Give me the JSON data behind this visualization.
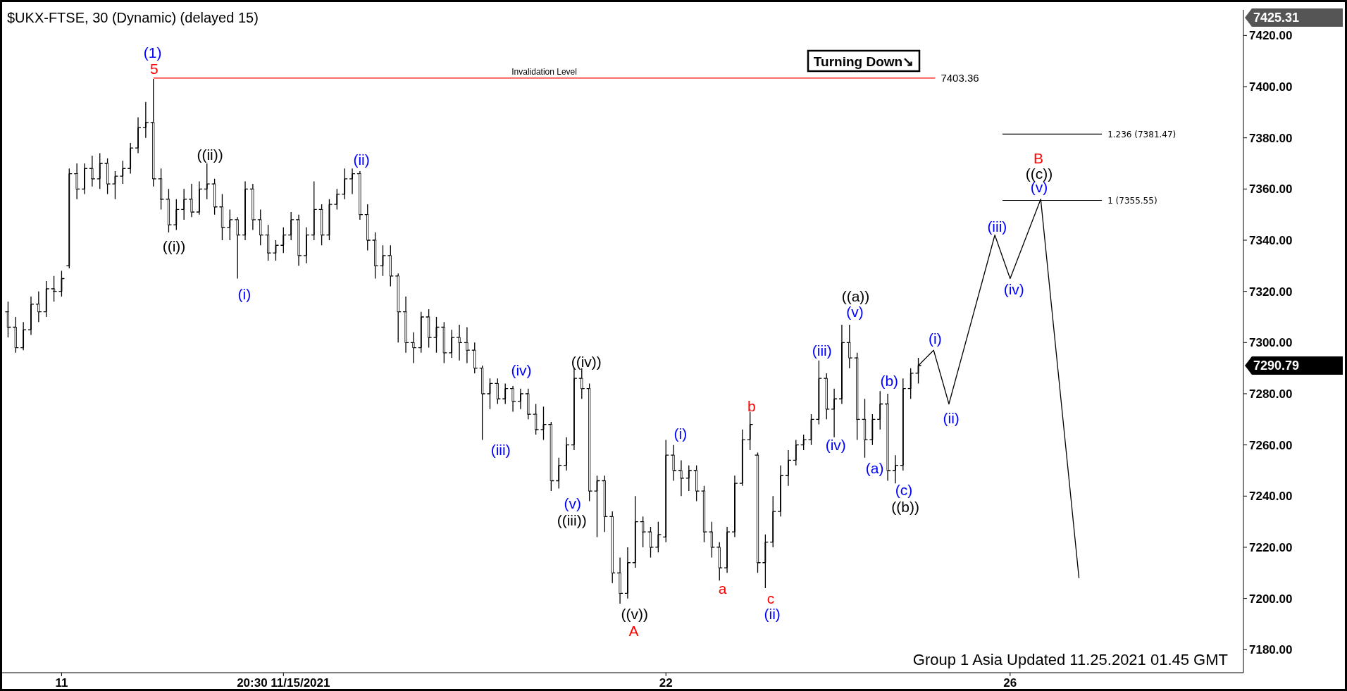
{
  "chart_data": {
    "type": "candlestick",
    "title": "$UKX-FTSE, 30 (Dynamic) (delayed 15)",
    "categories": [
      null,
      null,
      null,
      null,
      null,
      null,
      null,
      "11",
      null,
      null,
      null,
      null,
      null,
      null,
      null,
      null,
      null,
      null,
      null,
      null,
      null,
      null,
      null,
      null,
      null,
      null,
      null,
      null,
      null,
      null,
      null,
      null,
      null,
      null,
      null,
      null,
      "20:30 11/15/2021",
      null,
      null,
      null,
      null,
      null,
      null,
      null,
      null,
      null,
      null,
      null,
      null,
      null,
      null,
      null,
      null,
      null,
      null,
      null,
      null,
      null,
      null,
      null,
      null,
      null,
      null,
      null,
      null,
      null,
      null,
      null,
      null,
      null,
      null,
      null,
      null,
      null,
      null,
      null,
      null,
      null,
      null,
      null,
      null,
      null,
      null,
      null,
      null,
      null,
      "22",
      null,
      null,
      null,
      null,
      null,
      null,
      null,
      null,
      null,
      null,
      null,
      null,
      null,
      null,
      null,
      null,
      null,
      null,
      null,
      null,
      null,
      null,
      null,
      null,
      null,
      null,
      null,
      null,
      null,
      null,
      null,
      null,
      null,
      null,
      null,
      null,
      null,
      null,
      null,
      null,
      null,
      null,
      null,
      null,
      "26",
      null,
      null,
      null,
      null,
      null,
      null,
      null,
      null,
      null,
      null,
      null,
      null,
      null,
      null,
      null,
      null,
      null,
      null,
      null,
      null,
      null,
      null,
      null,
      null,
      null,
      null,
      null,
      null,
      null,
      null
    ],
    "ohlc": [
      [
        7312,
        7316,
        7302,
        7306
      ],
      [
        7306,
        7310,
        7296,
        7298
      ],
      [
        7298,
        7308,
        7297,
        7305
      ],
      [
        7305,
        7318,
        7303,
        7315
      ],
      [
        7315,
        7320,
        7308,
        7312
      ],
      [
        7312,
        7324,
        7310,
        7321
      ],
      [
        7321,
        7326,
        7316,
        7320
      ],
      [
        7320,
        7328,
        7318,
        7325
      ],
      [
        7330,
        7368,
        7329,
        7366
      ],
      [
        7366,
        7370,
        7356,
        7360
      ],
      [
        7360,
        7370,
        7358,
        7368
      ],
      [
        7368,
        7373,
        7361,
        7364
      ],
      [
        7364,
        7374,
        7360,
        7370
      ],
      [
        7370,
        7372,
        7358,
        7362
      ],
      [
        7362,
        7367,
        7356,
        7365
      ],
      [
        7365,
        7371,
        7362,
        7368
      ],
      [
        7368,
        7378,
        7366,
        7376
      ],
      [
        7376,
        7388,
        7374,
        7384
      ],
      [
        7384,
        7394,
        7380,
        7386
      ],
      [
        7386,
        7403,
        7361,
        7364
      ],
      [
        7364,
        7368,
        7352,
        7356
      ],
      [
        7356,
        7360,
        7343,
        7346
      ],
      [
        7346,
        7356,
        7344,
        7352
      ],
      [
        7352,
        7360,
        7348,
        7356
      ],
      [
        7356,
        7362,
        7349,
        7351
      ],
      [
        7351,
        7363,
        7350,
        7360
      ],
      [
        7360,
        7370,
        7356,
        7362
      ],
      [
        7362,
        7364,
        7350,
        7353
      ],
      [
        7353,
        7358,
        7340,
        7345
      ],
      [
        7345,
        7352,
        7340,
        7348
      ],
      [
        7348,
        7349,
        7325,
        7342
      ],
      [
        7342,
        7363,
        7340,
        7360
      ],
      [
        7360,
        7362,
        7344,
        7348
      ],
      [
        7348,
        7352,
        7338,
        7342
      ],
      [
        7342,
        7346,
        7332,
        7335
      ],
      [
        7335,
        7340,
        7332,
        7338
      ],
      [
        7338,
        7345,
        7335,
        7342
      ],
      [
        7342,
        7351,
        7340,
        7348
      ],
      [
        7348,
        7350,
        7330,
        7334
      ],
      [
        7334,
        7345,
        7331,
        7342
      ],
      [
        7342,
        7363,
        7340,
        7352
      ],
      [
        7352,
        7354,
        7338,
        7342
      ],
      [
        7342,
        7356,
        7340,
        7354
      ],
      [
        7354,
        7360,
        7352,
        7358
      ],
      [
        7358,
        7368,
        7356,
        7364
      ],
      [
        7364,
        7368,
        7358,
        7366
      ],
      [
        7366,
        7367,
        7348,
        7350
      ],
      [
        7350,
        7354,
        7336,
        7340
      ],
      [
        7340,
        7343,
        7325,
        7330
      ],
      [
        7330,
        7338,
        7326,
        7334
      ],
      [
        7334,
        7338,
        7322,
        7326
      ],
      [
        7326,
        7327,
        7300,
        7312
      ],
      [
        7312,
        7318,
        7296,
        7300
      ],
      [
        7300,
        7304,
        7292,
        7298
      ],
      [
        7298,
        7312,
        7296,
        7310
      ],
      [
        7310,
        7313,
        7298,
        7302
      ],
      [
        7302,
        7310,
        7296,
        7306
      ],
      [
        7306,
        7308,
        7292,
        7296
      ],
      [
        7296,
        7305,
        7294,
        7302
      ],
      [
        7302,
        7307,
        7293,
        7300
      ],
      [
        7300,
        7306,
        7292,
        7297
      ],
      [
        7297,
        7300,
        7288,
        7290
      ],
      [
        7290,
        7291,
        7262,
        7280
      ],
      [
        7280,
        7286,
        7274,
        7284
      ],
      [
        7284,
        7286,
        7276,
        7278
      ],
      [
        7278,
        7284,
        7276,
        7282
      ],
      [
        7282,
        7283,
        7273,
        7277
      ],
      [
        7277,
        7282,
        7274,
        7280
      ],
      [
        7280,
        7282,
        7270,
        7272
      ],
      [
        7272,
        7276,
        7264,
        7266
      ],
      [
        7266,
        7275,
        7262,
        7268
      ],
      [
        7268,
        7269,
        7242,
        7246
      ],
      [
        7246,
        7255,
        7243,
        7252
      ],
      [
        7252,
        7263,
        7250,
        7260
      ],
      [
        7260,
        7290,
        7258,
        7286
      ],
      [
        7286,
        7290,
        7278,
        7282
      ],
      [
        7282,
        7284,
        7238,
        7242
      ],
      [
        7242,
        7248,
        7224,
        7246
      ],
      [
        7246,
        7248,
        7226,
        7232
      ],
      [
        7232,
        7234,
        7206,
        7210
      ],
      [
        7210,
        7216,
        7198,
        7202
      ],
      [
        7202,
        7220,
        7200,
        7214
      ],
      [
        7214,
        7240,
        7212,
        7230
      ],
      [
        7230,
        7232,
        7220,
        7226
      ],
      [
        7226,
        7228,
        7216,
        7220
      ],
      [
        7220,
        7230,
        7218,
        7225
      ],
      [
        7224,
        7262,
        7222,
        7256
      ],
      [
        7256,
        7260,
        7246,
        7250
      ],
      [
        7250,
        7254,
        7240,
        7247
      ],
      [
        7247,
        7252,
        7242,
        7250
      ],
      [
        7250,
        7252,
        7238,
        7242
      ],
      [
        7242,
        7244,
        7222,
        7226
      ],
      [
        7226,
        7230,
        7216,
        7220
      ],
      [
        7220,
        7222,
        7207,
        7212
      ],
      [
        7212,
        7228,
        7210,
        7226
      ],
      [
        7226,
        7248,
        7224,
        7245
      ],
      [
        7245,
        7266,
        7244,
        7262
      ],
      [
        7262,
        7273,
        7258,
        7268
      ],
      [
        7256,
        7257,
        7210,
        7214
      ],
      [
        7214,
        7225,
        7204,
        7222
      ],
      [
        7222,
        7240,
        7220,
        7234
      ],
      [
        7234,
        7252,
        7232,
        7248
      ],
      [
        7248,
        7258,
        7244,
        7254
      ],
      [
        7254,
        7262,
        7252,
        7260
      ],
      [
        7260,
        7264,
        7258,
        7262
      ],
      [
        7262,
        7272,
        7260,
        7270
      ],
      [
        7270,
        7293,
        7268,
        7286
      ],
      [
        7286,
        7288,
        7270,
        7274
      ],
      [
        7274,
        7282,
        7263,
        7278
      ],
      [
        7278,
        7307,
        7276,
        7300
      ],
      [
        7300,
        7307,
        7290,
        7294
      ],
      [
        7294,
        7296,
        7262,
        7270
      ],
      [
        7270,
        7278,
        7255,
        7262
      ],
      [
        7262,
        7272,
        7260,
        7270
      ],
      [
        7270,
        7281,
        7266,
        7276
      ],
      [
        7276,
        7280,
        7246,
        7250
      ],
      [
        7250,
        7256,
        7245,
        7252
      ],
      [
        7252,
        7286,
        7250,
        7282
      ],
      [
        7282,
        7290,
        7278,
        7288
      ],
      [
        7288,
        7294,
        7284,
        7291
      ],
      null,
      null,
      null,
      null,
      null,
      null,
      null,
      null,
      null,
      null,
      null,
      null,
      null,
      null,
      null,
      null,
      null,
      null,
      null,
      null,
      null,
      null,
      null,
      null,
      null,
      null,
      null,
      null,
      null,
      null,
      null,
      null,
      null,
      null,
      null,
      null,
      null,
      null,
      null,
      null,
      null,
      null
    ],
    "color": "#000000",
    "series": [
      {
        "type": "line",
        "color": "#000000",
        "values": [
          null,
          null,
          null,
          null,
          null,
          null,
          null,
          null,
          null,
          null,
          null,
          null,
          null,
          null,
          null,
          null,
          null,
          null,
          null,
          null,
          null,
          null,
          null,
          null,
          null,
          null,
          null,
          null,
          null,
          null,
          null,
          null,
          null,
          null,
          null,
          null,
          null,
          null,
          null,
          null,
          null,
          null,
          null,
          null,
          null,
          null,
          null,
          null,
          null,
          null,
          null,
          null,
          null,
          null,
          null,
          null,
          null,
          null,
          null,
          null,
          null,
          null,
          null,
          null,
          null,
          null,
          null,
          null,
          null,
          null,
          null,
          null,
          null,
          null,
          null,
          null,
          null,
          null,
          null,
          null,
          null,
          null,
          null,
          null,
          null,
          null,
          null,
          null,
          null,
          null,
          null,
          null,
          null,
          null,
          null,
          null,
          null,
          null,
          null,
          null,
          null,
          null,
          null,
          null,
          null,
          null,
          null,
          null,
          null,
          null,
          null,
          null,
          null,
          null,
          null,
          null,
          null,
          null,
          null,
          7291,
          null,
          7297,
          null,
          7276,
          null,
          null,
          null,
          null,
          null,
          7342,
          null,
          7325,
          null,
          null,
          null,
          7356,
          null,
          null,
          null,
          null,
          7208,
          null,
          null,
          null,
          null,
          null,
          null,
          null,
          null,
          null,
          null,
          null,
          null,
          null,
          null,
          null,
          null,
          null,
          null,
          null,
          null,
          null
        ]
      }
    ],
    "ylim": [
      7171,
      7430
    ],
    "yticks": [
      {
        "value": 7180,
        "label": "7180.00"
      },
      {
        "value": 7200,
        "label": "7200.00"
      },
      {
        "value": 7220,
        "label": "7220.00"
      },
      {
        "value": 7240,
        "label": "7240.00"
      },
      {
        "value": 7260,
        "label": "7260.00"
      },
      {
        "value": 7280,
        "label": "7280.00"
      },
      {
        "value": 7300,
        "label": "7300.00"
      },
      {
        "value": 7320,
        "label": "7320.00"
      },
      {
        "value": 7340,
        "label": "7340.00"
      },
      {
        "value": 7360,
        "label": "7360.00"
      },
      {
        "value": 7380,
        "label": "7380.00"
      },
      {
        "value": 7400,
        "label": "7400.00"
      },
      {
        "value": 7420,
        "label": "7420.00"
      }
    ],
    "ref_lines": [
      {
        "axis": "y",
        "value": 7403.36,
        "label": "Invalidation Level",
        "color": "#ff0000"
      },
      {
        "axis": "y",
        "value": 7381.47,
        "label": "1.236 (7381.47)",
        "color": "#000000"
      },
      {
        "axis": "y",
        "value": 7355.55,
        "label": "1 (7355.55)",
        "color": "#000000"
      }
    ],
    "annotations": [
      "Turning Down↘",
      "Group 1 Asia Updated 11.25.2021 01.45 GMT",
      "7425.31",
      "7290.79",
      "7403.36",
      "(1)",
      "5",
      "((i))",
      "((ii))",
      "(i)",
      "(ii)",
      "(iii)",
      "(iv)",
      "(v)",
      "((iii))",
      "((iv))",
      "((v))",
      "A",
      "(i)",
      "a",
      "b",
      "c",
      "(ii)",
      "(iii)",
      "(iv)",
      "((a))",
      "(v)",
      "(a)",
      "(b)",
      "(c)",
      "((b))",
      "(i)",
      "(ii)",
      "(iii)",
      "(iv)",
      "(v)",
      "((c))",
      "B"
    ]
  }
}
